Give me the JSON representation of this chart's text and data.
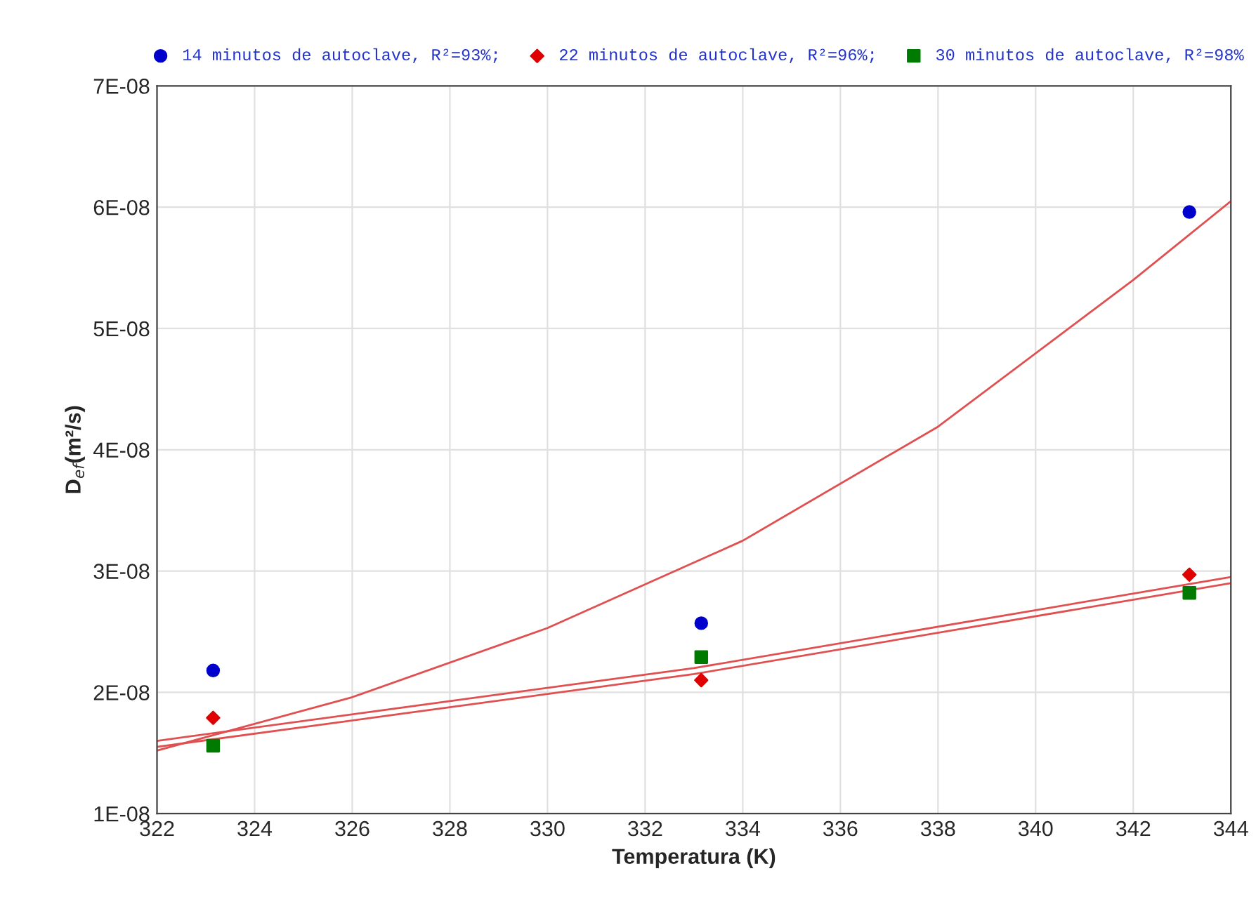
{
  "chart_data": {
    "type": "scatter",
    "xlabel": "Temperatura (K)",
    "ylabel": "D$_{ef}$(m²/s)",
    "xlim": [
      322,
      344
    ],
    "xticks": [
      322,
      324,
      326,
      328,
      330,
      332,
      334,
      336,
      338,
      340,
      342,
      344
    ],
    "ylim": [
      1e-08,
      7e-08
    ],
    "yticks": [
      {
        "value": 1e-08,
        "label": "1E-08"
      },
      {
        "value": 2e-08,
        "label": "2E-08"
      },
      {
        "value": 3e-08,
        "label": "3E-08"
      },
      {
        "value": 4e-08,
        "label": "4E-08"
      },
      {
        "value": 5e-08,
        "label": "5E-08"
      },
      {
        "value": 6e-08,
        "label": "6E-08"
      },
      {
        "value": 7e-08,
        "label": "7E-08"
      }
    ],
    "grid": true,
    "legend": "top",
    "series": [
      {
        "name": "14 minutos de autoclave, R²=93%;",
        "color": "#0000cc",
        "marker": "circle",
        "x": [
          323.15,
          333.15,
          343.15
        ],
        "values": [
          2.18e-08,
          2.57e-08,
          5.96e-08
        ]
      },
      {
        "name": "22 minutos de autoclave, R²=96%;",
        "color": "#e00000",
        "marker": "diamond",
        "x": [
          323.15,
          333.15,
          343.15
        ],
        "values": [
          1.79e-08,
          2.1e-08,
          2.97e-08
        ]
      },
      {
        "name": "30 minutos de autoclave, R²=98%",
        "color": "#007a00",
        "marker": "square",
        "x": [
          323.15,
          333.15,
          343.15
        ],
        "values": [
          1.56e-08,
          2.29e-08,
          2.82e-08
        ]
      },
      {
        "type": "line",
        "color": "#e05050",
        "x": [
          322,
          326,
          330,
          334,
          338,
          342,
          344
        ],
        "values": [
          1.52e-08,
          1.96e-08,
          2.53e-08,
          3.25e-08,
          4.19e-08,
          5.4e-08,
          6.05e-08
        ]
      },
      {
        "type": "line",
        "color": "#e05050",
        "x": [
          322,
          333,
          344
        ],
        "values": [
          1.6e-08,
          2.2e-08,
          2.95e-08
        ]
      },
      {
        "type": "line",
        "color": "#e05050",
        "x": [
          322,
          333,
          344
        ],
        "values": [
          1.55e-08,
          2.15e-08,
          2.9e-08
        ]
      }
    ]
  }
}
